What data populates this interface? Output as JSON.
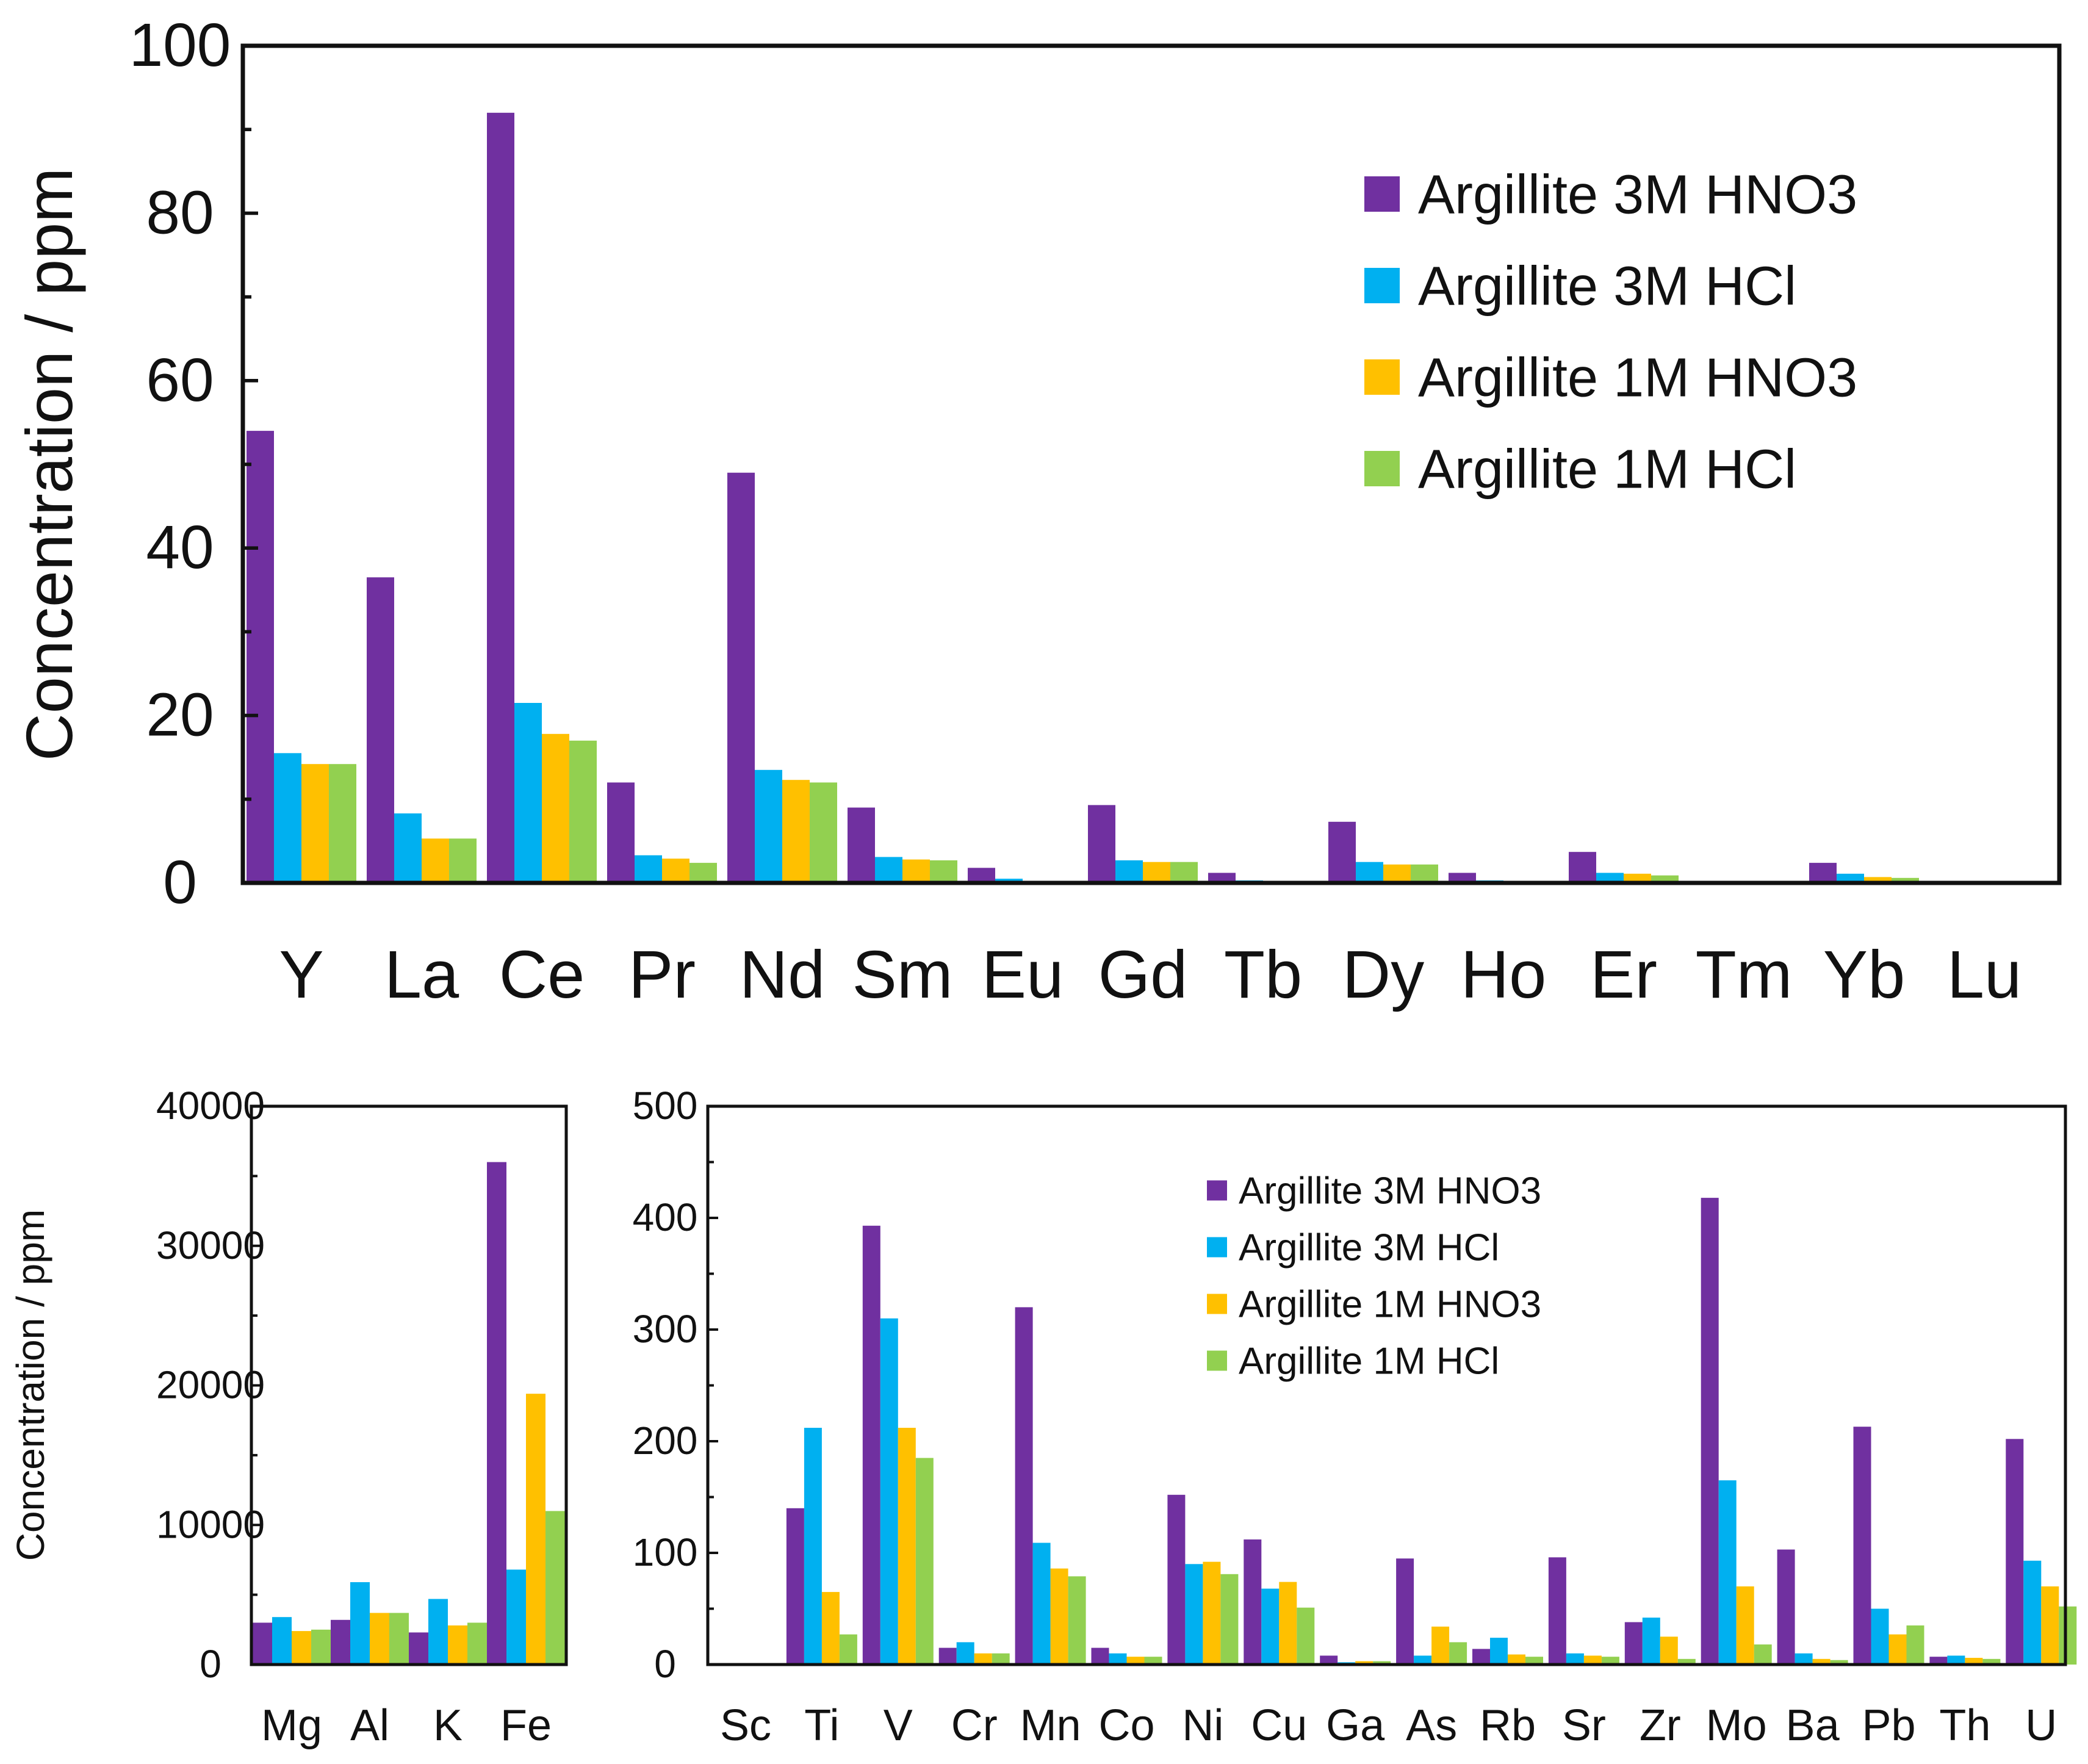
{
  "colors": {
    "Argillite 3M HNO3": "#7030A0",
    "Argillite 3M HCl": "#00B0F0",
    "Argillite 1M HNO3": "#FFC000",
    "Argillite 1M HCl": "#92D050"
  },
  "chart_data": [
    {
      "id": "ree",
      "type": "bar",
      "title": "",
      "xlabel": "",
      "ylabel": "Concentration / ppm",
      "ylim": [
        0,
        100
      ],
      "yticks": [
        0,
        20,
        40,
        60,
        80,
        100
      ],
      "yticklabels": [
        "0",
        "20",
        "40",
        "60",
        "80",
        "100"
      ],
      "minor_step": 10,
      "legend_position": "top-right",
      "categories": [
        "Y",
        "La",
        "Ce",
        "Pr",
        "Nd",
        "Sm",
        "Eu",
        "Gd",
        "Tb",
        "Dy",
        "Ho",
        "Er",
        "Tm",
        "Yb",
        "Lu"
      ],
      "series": [
        {
          "name": "Argillite 3M HNO3",
          "values": [
            54,
            36.5,
            92,
            12,
            49,
            9,
            1.8,
            9.3,
            1.2,
            7.3,
            1.2,
            3.7,
            0.2,
            2.4,
            0.2
          ]
        },
        {
          "name": "Argillite 3M HCl",
          "values": [
            15.5,
            8.3,
            21.5,
            3.3,
            13.5,
            3.1,
            0.5,
            2.7,
            0.3,
            2.5,
            0.3,
            1.2,
            0.1,
            1.1,
            0.1
          ]
        },
        {
          "name": "Argillite 1M HNO3",
          "values": [
            14.2,
            5.3,
            17.8,
            2.9,
            12.3,
            2.8,
            0.2,
            2.5,
            0.2,
            2.2,
            0.2,
            1.1,
            0.1,
            0.7,
            0.1
          ]
        },
        {
          "name": "Argillite 1M HCl",
          "values": [
            14.2,
            5.3,
            17,
            2.4,
            12,
            2.7,
            0.2,
            2.5,
            0.2,
            2.2,
            0.2,
            0.9,
            0.1,
            0.6,
            0.1
          ]
        }
      ]
    },
    {
      "id": "major",
      "type": "bar",
      "title": "",
      "xlabel": "",
      "ylabel": "Concentration / ppm",
      "ylim": [
        0,
        40000
      ],
      "yticks": [
        0,
        10000,
        20000,
        30000,
        40000
      ],
      "yticklabels": [
        "0",
        "10000",
        "20000",
        "30000",
        "40000"
      ],
      "minor_step": 5000,
      "categories": [
        "Mg",
        "Al",
        "K",
        "Fe"
      ],
      "series": [
        {
          "name": "Argillite 3M HNO3",
          "values": [
            3000,
            3200,
            2300,
            36000
          ]
        },
        {
          "name": "Argillite 3M HCl",
          "values": [
            3400,
            5900,
            4700,
            6800
          ]
        },
        {
          "name": "Argillite 1M HNO3",
          "values": [
            2400,
            3700,
            2800,
            19400
          ]
        },
        {
          "name": "Argillite 1M HCl",
          "values": [
            2500,
            3700,
            3000,
            11000
          ]
        }
      ]
    },
    {
      "id": "trace",
      "type": "bar",
      "title": "",
      "xlabel": "",
      "ylabel": "",
      "ylim": [
        0,
        500
      ],
      "yticks": [
        0,
        100,
        200,
        300,
        400,
        500
      ],
      "yticklabels": [
        "0",
        "100",
        "200",
        "300",
        "400",
        "500"
      ],
      "minor_step": 50,
      "legend_position": "top-center",
      "categories": [
        "Sc",
        "Ti",
        "V",
        "Cr",
        "Mn",
        "Co",
        "Ni",
        "Cu",
        "Ga",
        "As",
        "Rb",
        "Sr",
        "Zr",
        "Mo",
        "Ba",
        "Pb",
        "Th",
        "U"
      ],
      "series": [
        {
          "name": "Argillite 3M HNO3",
          "values": [
            0,
            140,
            393,
            15,
            320,
            15,
            152,
            112,
            8,
            95,
            14,
            96,
            38,
            418,
            103,
            213,
            7,
            202
          ]
        },
        {
          "name": "Argillite 3M HCl",
          "values": [
            0,
            212,
            310,
            20,
            109,
            10,
            90,
            68,
            2,
            8,
            24,
            10,
            42,
            165,
            10,
            50,
            8,
            93
          ]
        },
        {
          "name": "Argillite 1M HNO3",
          "values": [
            0,
            65,
            212,
            10,
            86,
            7,
            92,
            74,
            3,
            34,
            9,
            8,
            25,
            70,
            5,
            27,
            6,
            70
          ]
        },
        {
          "name": "Argillite 1M HCl",
          "values": [
            0,
            27,
            185,
            10,
            79,
            7,
            81,
            51,
            3,
            20,
            7,
            7,
            5,
            18,
            4,
            35,
            5,
            52
          ]
        }
      ]
    }
  ]
}
